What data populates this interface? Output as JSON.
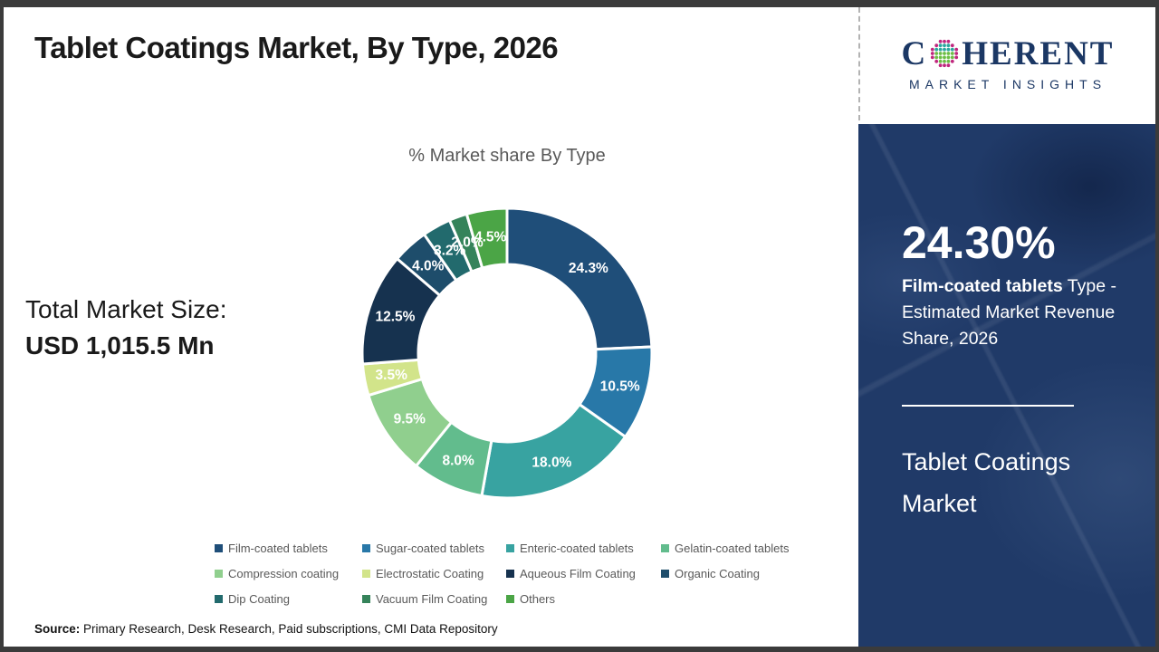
{
  "theme": {
    "frame": "#3b3b3b",
    "panel_navy": "#203a68",
    "logo_navy": "#1b3764",
    "logo_teal": "#2aa79e",
    "logo_green": "#6cbe45",
    "logo_magenta": "#c0267e",
    "text_dark": "#1a1a1a",
    "muted_gray": "#595959",
    "white": "#ffffff"
  },
  "header": {
    "title": "Tablet Coatings Market, By Type, 2026"
  },
  "logo": {
    "word_start": "C",
    "word_end": "HERENT",
    "subtitle": "MARKET INSIGHTS"
  },
  "left_stat": {
    "label": "Total Market Size:",
    "value": "USD 1,015.5 Mn"
  },
  "chart_data": {
    "type": "pie",
    "donut": true,
    "title": "% Market share By Type",
    "start_angle_deg": 0,
    "direction": "clockwise",
    "categories": [
      "Film-coated tablets",
      "Sugar-coated tablets",
      "Enteric-coated tablets",
      "Gelatin-coated tablets",
      "Compression coating",
      "Electrostatic Coating",
      "Aqueous Film Coating",
      "Organic Coating",
      "Dip Coating",
      "Vacuum Film Coating",
      "Others"
    ],
    "values": [
      24.3,
      10.5,
      18.0,
      8.0,
      9.5,
      3.5,
      12.5,
      4.0,
      3.2,
      2.0,
      4.5
    ],
    "labels": [
      "24.3%",
      "10.5%",
      "18.0%",
      "8.0%",
      "9.5%",
      "3.5%",
      "12.5%",
      "4.0%",
      "3.2%",
      "2.0%",
      "4.5%"
    ],
    "colors": [
      "#1f4e79",
      "#2878a8",
      "#38a3a1",
      "#62bc8d",
      "#90cf8e",
      "#d2e48a",
      "#16324f",
      "#1e4d6b",
      "#226a6d",
      "#35835a",
      "#4ba546"
    ],
    "legend_position": "bottom"
  },
  "side_panel": {
    "highlight_value": "24.30%",
    "highlight_bold": "Film-coated tablets",
    "highlight_rest": " Type - Estimated Market Revenue Share, 2026",
    "panel_title": "Tablet Coatings Market"
  },
  "footer": {
    "source_label": "Source:",
    "source_text": " Primary Research, Desk Research, Paid subscriptions, CMI Data Repository"
  }
}
